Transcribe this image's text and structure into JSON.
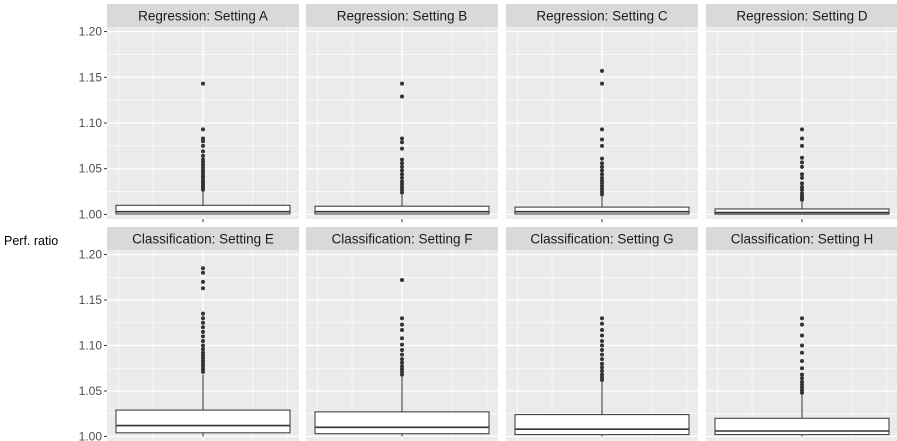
{
  "chart_data": {
    "type": "boxplot",
    "ylabel": "Perf. ratio",
    "xlabel": "",
    "yticks": [
      1.0,
      1.05,
      1.1,
      1.15,
      1.2
    ],
    "ytick_labels": [
      "1.00",
      "1.05",
      "1.10",
      "1.15",
      "1.20"
    ],
    "ylim": [
      0.995,
      1.205
    ],
    "colors": {
      "panel_bg": "#ebebeb",
      "strip_bg": "#d9d9d9",
      "grid": "#ffffff",
      "box_fill": "#ffffff",
      "box_stroke": "#333333",
      "outlier": "#333333"
    },
    "panels": [
      {
        "title": "Regression: Setting A",
        "box": {
          "lower_whisker": 1.0,
          "q1": 1.0005,
          "median": 1.003,
          "q3": 1.01,
          "upper_whisker": 1.025
        },
        "outliers": [
          1.027,
          1.029,
          1.031,
          1.033,
          1.035,
          1.037,
          1.04,
          1.042,
          1.045,
          1.048,
          1.051,
          1.054,
          1.057,
          1.06,
          1.064,
          1.069,
          1.075,
          1.08,
          1.083,
          1.093,
          1.143
        ]
      },
      {
        "title": "Regression: Setting B",
        "box": {
          "lower_whisker": 1.0,
          "q1": 1.0005,
          "median": 1.003,
          "q3": 1.009,
          "upper_whisker": 1.022
        },
        "outliers": [
          1.024,
          1.027,
          1.03,
          1.033,
          1.036,
          1.04,
          1.044,
          1.048,
          1.052,
          1.056,
          1.06,
          1.072,
          1.079,
          1.083,
          1.129,
          1.143
        ]
      },
      {
        "title": "Regression: Setting C",
        "box": {
          "lower_whisker": 1.0,
          "q1": 1.0005,
          "median": 1.003,
          "q3": 1.008,
          "upper_whisker": 1.02
        },
        "outliers": [
          1.022,
          1.025,
          1.028,
          1.031,
          1.034,
          1.037,
          1.04,
          1.044,
          1.048,
          1.052,
          1.056,
          1.061,
          1.075,
          1.082,
          1.093,
          1.143,
          1.157
        ]
      },
      {
        "title": "Regression: Setting D",
        "box": {
          "lower_whisker": 1.0,
          "q1": 1.0003,
          "median": 1.002,
          "q3": 1.006,
          "upper_whisker": 1.014
        },
        "outliers": [
          1.016,
          1.018,
          1.02,
          1.023,
          1.027,
          1.03,
          1.034,
          1.04,
          1.044,
          1.052,
          1.057,
          1.062,
          1.075,
          1.083,
          1.093
        ]
      },
      {
        "title": "Classification: Setting E",
        "box": {
          "lower_whisker": 1.0,
          "q1": 1.004,
          "median": 1.012,
          "q3": 1.029,
          "upper_whisker": 1.068
        },
        "outliers": [
          1.071,
          1.074,
          1.077,
          1.08,
          1.083,
          1.086,
          1.089,
          1.092,
          1.096,
          1.1,
          1.105,
          1.11,
          1.115,
          1.12,
          1.125,
          1.13,
          1.135,
          1.163,
          1.17,
          1.18,
          1.185
        ]
      },
      {
        "title": "Classification: Setting F",
        "box": {
          "lower_whisker": 1.0,
          "q1": 1.003,
          "median": 1.01,
          "q3": 1.027,
          "upper_whisker": 1.066
        },
        "outliers": [
          1.068,
          1.071,
          1.074,
          1.077,
          1.081,
          1.085,
          1.09,
          1.095,
          1.101,
          1.108,
          1.117,
          1.123,
          1.13,
          1.172
        ]
      },
      {
        "title": "Classification: Setting G",
        "box": {
          "lower_whisker": 1.0,
          "q1": 1.002,
          "median": 1.008,
          "q3": 1.024,
          "upper_whisker": 1.06
        },
        "outliers": [
          1.062,
          1.065,
          1.068,
          1.072,
          1.076,
          1.08,
          1.085,
          1.09,
          1.095,
          1.1,
          1.105,
          1.111,
          1.117,
          1.124,
          1.13
        ]
      },
      {
        "title": "Classification: Setting H",
        "box": {
          "lower_whisker": 1.0,
          "q1": 1.002,
          "median": 1.006,
          "q3": 1.02,
          "upper_whisker": 1.047
        },
        "outliers": [
          1.048,
          1.051,
          1.054,
          1.057,
          1.06,
          1.064,
          1.068,
          1.075,
          1.083,
          1.092,
          1.1,
          1.111,
          1.123,
          1.13
        ]
      }
    ]
  }
}
